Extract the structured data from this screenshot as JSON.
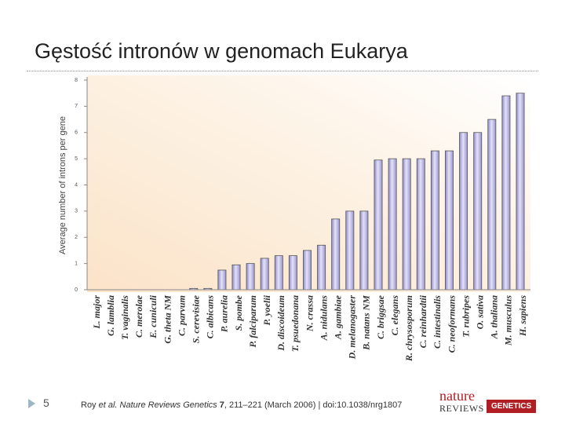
{
  "slide": {
    "title": "Gęstość intronów w genomach Eukarya",
    "page_number": "5",
    "citation": {
      "author": "Roy",
      "etal": "et al.",
      "journal": "Nature Reviews Genetics",
      "volume": "7",
      "rest": ", 211–221 (March 2006) | doi:10.1038/nrg1807"
    },
    "logo": {
      "top": "nature",
      "middle": "REVIEWS",
      "badge": "GENETICS"
    }
  },
  "chart_data": {
    "type": "bar",
    "y_label": "Average number of introns per gene",
    "categories": [
      "L. major",
      "G. lamblia",
      "T. vaginalis",
      "C. merolae",
      "E. cuniculi",
      "G. theta NM",
      "C. parvum",
      "S. cerevisiae",
      "C. albicans",
      "P. aurelia",
      "S. pombe",
      "P. falciparum",
      "P. yoelii",
      "D. discoideum",
      "T. psuedonana",
      "N. crassa",
      "A. nidulans",
      "A. gambiae",
      "D. melanogaster",
      "B. natans NM",
      "C. briggsae",
      "C. elegans",
      "R. chrysosporum",
      "C. reinhardtii",
      "C. intestinalis",
      "C. neoformans",
      "T. rubripes",
      "O. sativa",
      "A. thaliana",
      "M. musculus",
      "H. sapiens"
    ],
    "values": [
      0,
      0,
      0,
      0,
      0,
      0,
      0,
      0.05,
      0.05,
      0.75,
      0.95,
      1.0,
      1.2,
      1.3,
      1.3,
      1.5,
      1.7,
      2.7,
      3.0,
      3.0,
      4.95,
      5.0,
      5.0,
      5.0,
      5.3,
      5.3,
      6.0,
      6.0,
      6.5,
      7.4,
      7.5
    ],
    "color": "#bab6e6",
    "ylim": [
      0,
      8
    ],
    "yticks": [
      0,
      1,
      2,
      3,
      4,
      5,
      6,
      7,
      8
    ]
  }
}
